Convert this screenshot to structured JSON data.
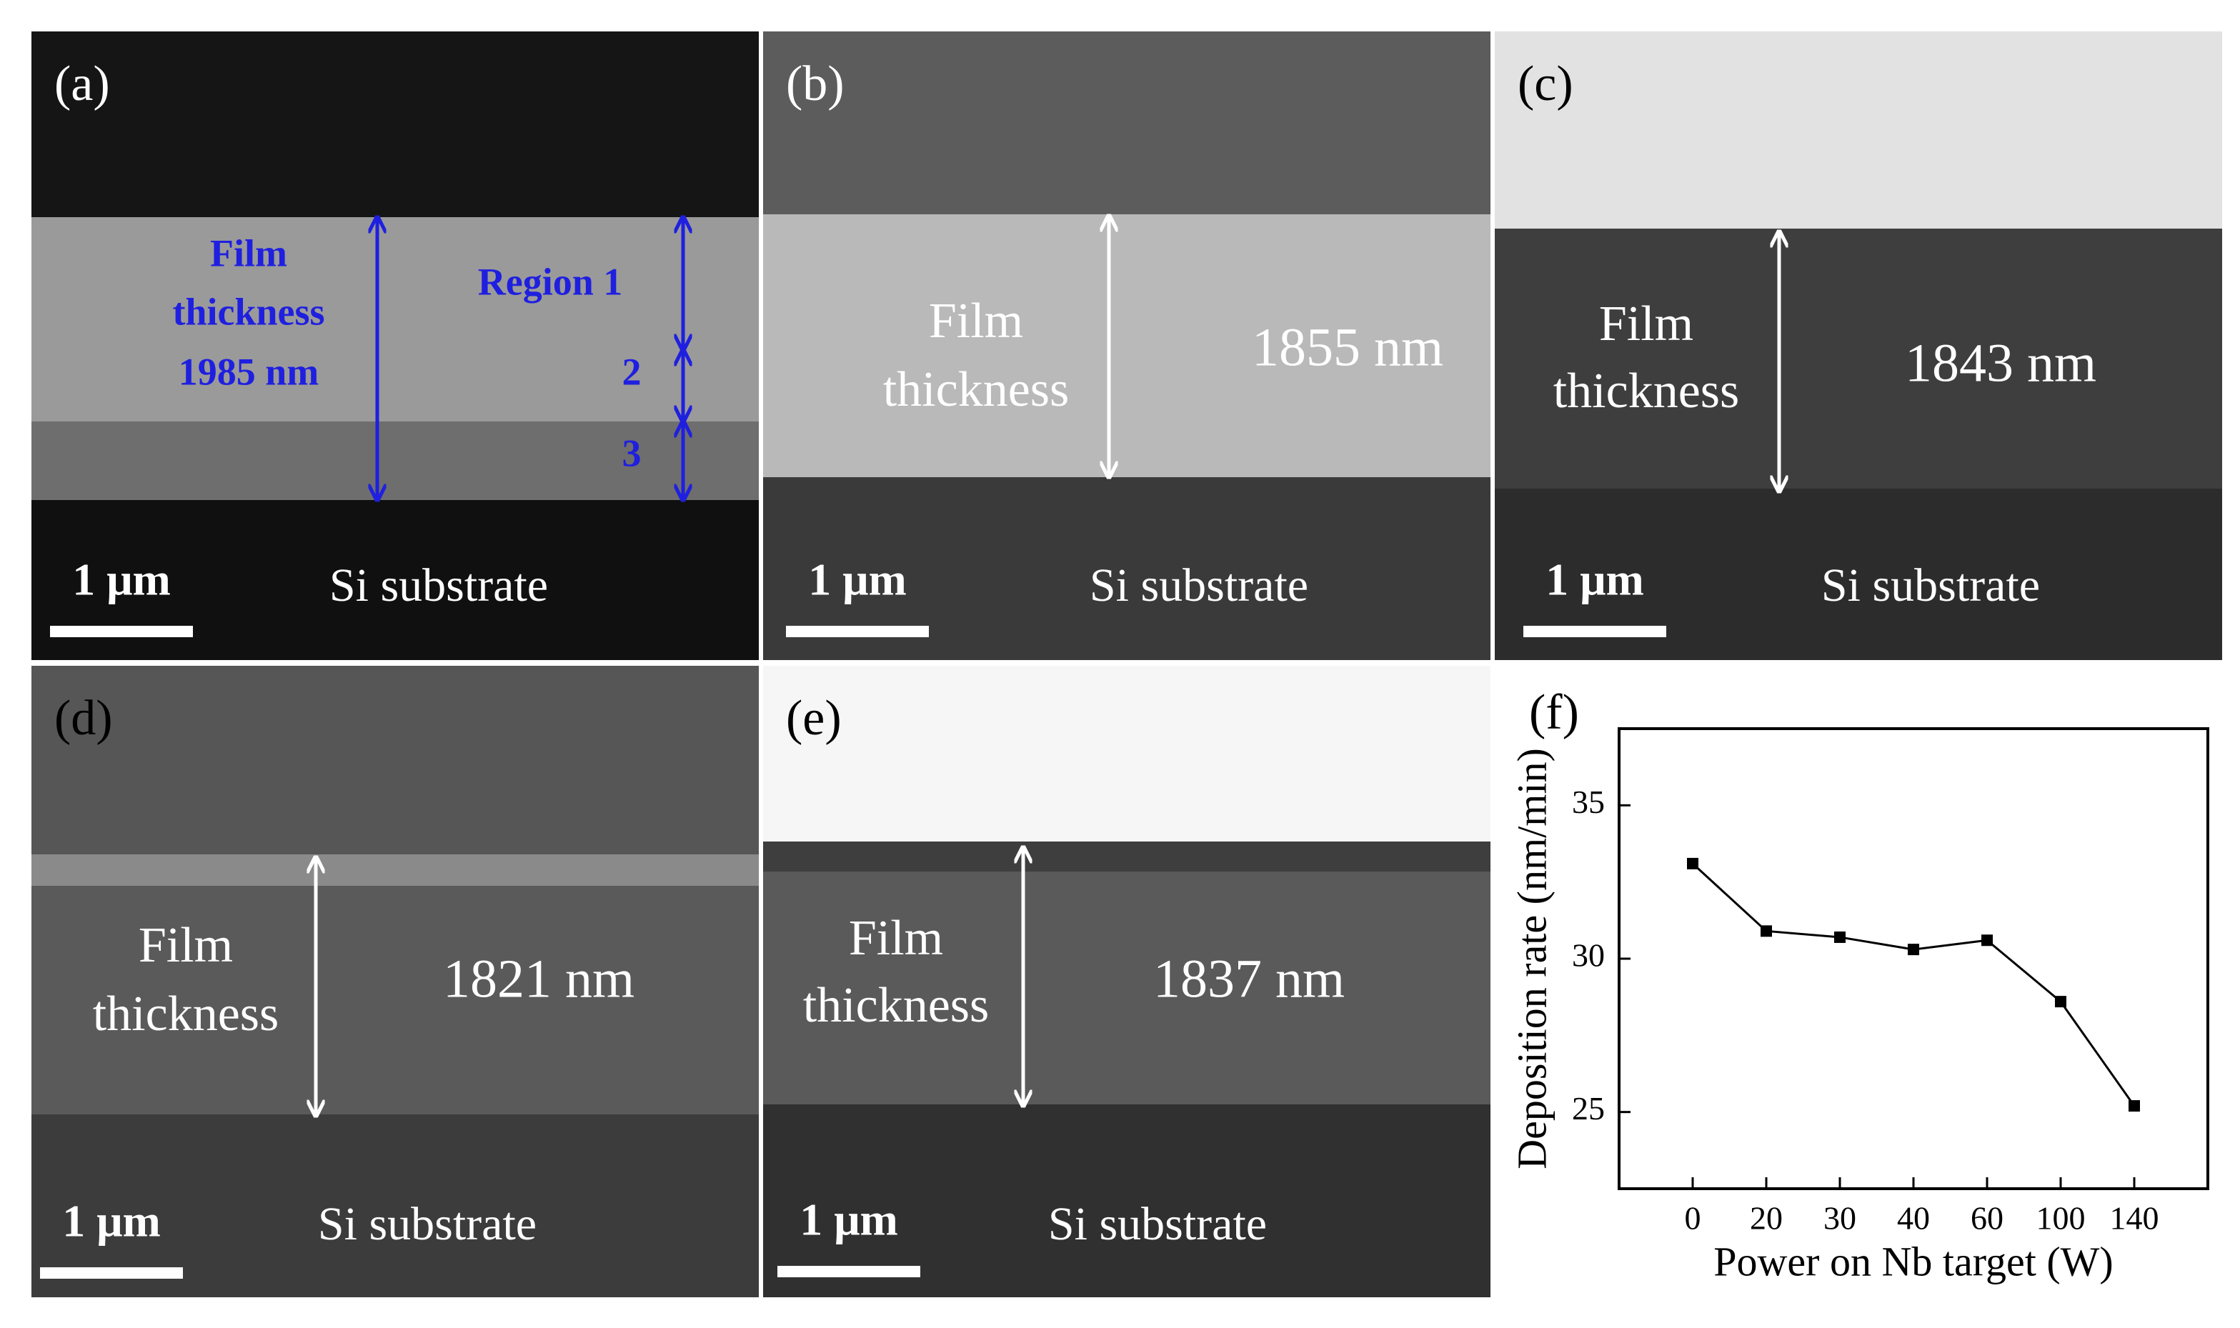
{
  "panels": [
    {
      "label": "(a)",
      "film_text": [
        "Film",
        "thickness",
        "1985 nm"
      ],
      "regions": [
        "Region 1",
        "2",
        "3"
      ],
      "scale_bar": "1 μm",
      "substrate": "Si substrate"
    },
    {
      "label": "(b)",
      "film_text": [
        "Film",
        "thickness",
        "1855 nm"
      ],
      "scale_bar": "1 μm",
      "substrate": "Si substrate"
    },
    {
      "label": "(c)",
      "film_text": [
        "Film",
        "thickness",
        "1843 nm"
      ],
      "scale_bar": "1 μm",
      "substrate": "Si substrate"
    },
    {
      "label": "(d)",
      "film_text": [
        "Film",
        "thickness",
        "1821 nm"
      ],
      "scale_bar": "1 μm",
      "substrate": "Si substrate"
    },
    {
      "label": "(e)",
      "film_text": [
        "Film",
        "thickness",
        "1837 nm"
      ],
      "scale_bar": "1 μm",
      "substrate": "Si substrate"
    }
  ],
  "chart_data": {
    "type": "line",
    "label": "(f)",
    "x_label": "Power on Nb target (W)",
    "y_label": "Deposition rate (nm/min)",
    "categories": [
      0,
      20,
      30,
      40,
      60,
      100,
      140
    ],
    "values": [
      33.1,
      30.9,
      30.7,
      30.3,
      30.6,
      28.6,
      25.2
    ],
    "color": "#000000",
    "ylim": [
      22.5,
      37.5
    ],
    "yticks": [
      25,
      30,
      35
    ]
  }
}
